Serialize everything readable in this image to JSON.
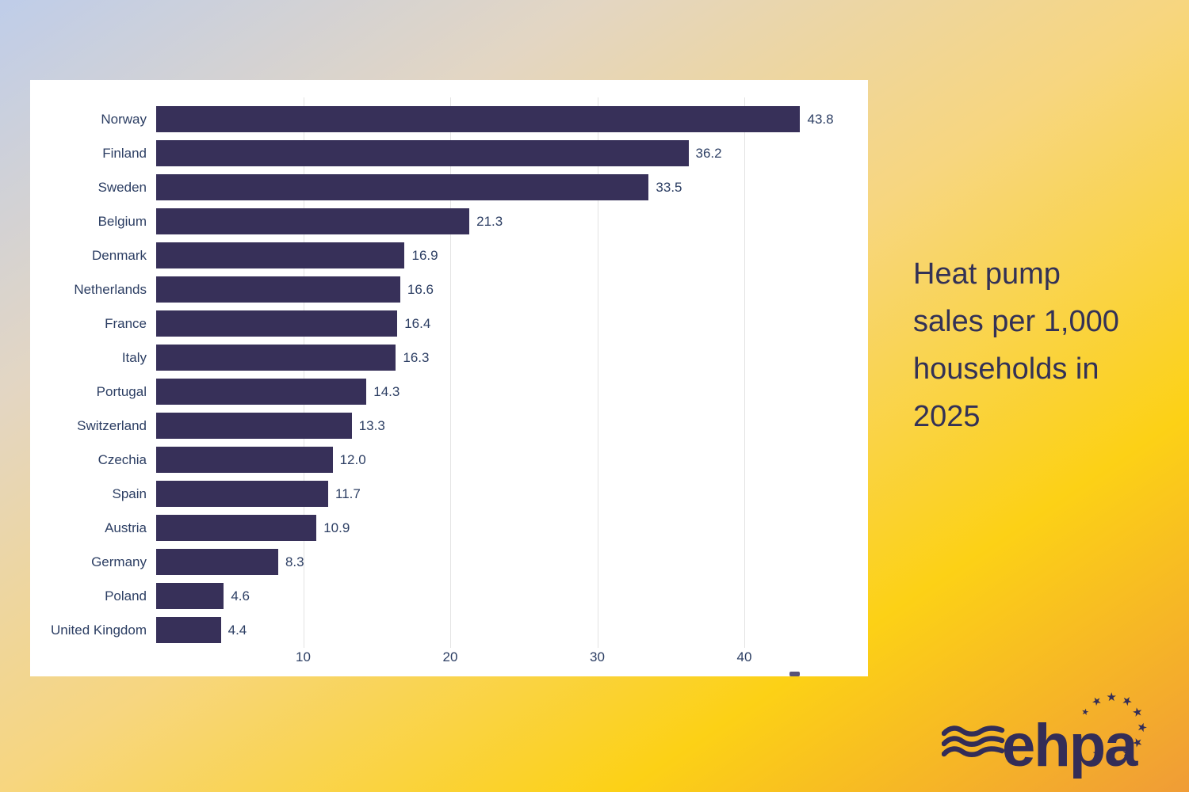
{
  "title": {
    "text": "Heat pump sales per 1,000 households in 2025",
    "lines": [
      "Heat pump",
      "sales per 1,000",
      "households in",
      "2025"
    ]
  },
  "chart_data": {
    "type": "bar",
    "orientation": "horizontal",
    "title": "Heat pump sales per 1,000 households in 2025",
    "categories": [
      "Norway",
      "Finland",
      "Sweden",
      "Belgium",
      "Denmark",
      "Netherlands",
      "France",
      "Italy",
      "Portugal",
      "Switzerland",
      "Czechia",
      "Spain",
      "Austria",
      "Germany",
      "Poland",
      "United Kingdom"
    ],
    "values": [
      43.8,
      36.2,
      33.5,
      21.3,
      16.9,
      16.6,
      16.4,
      16.3,
      14.3,
      13.3,
      12.0,
      11.7,
      10.9,
      8.3,
      4.6,
      4.4
    ],
    "value_labels": [
      "43.8",
      "36.2",
      "33.5",
      "21.3",
      "16.9",
      "16.6",
      "16.4",
      "16.3",
      "14.3",
      "13.3",
      "12.0",
      "11.7",
      "10.9",
      "8.3",
      "4.6",
      "4.4"
    ],
    "xticks": [
      10,
      20,
      30,
      40
    ],
    "xlim": [
      0,
      48
    ],
    "grid": true,
    "legend": false,
    "value_labels_shown": true,
    "bar_color": "#373059",
    "text_color": "#2c3e63",
    "gridline_color": "#e3e3e3",
    "panel_color": "#ffffff"
  },
  "logo": {
    "wordmark": "ehpa",
    "icon": "waves-icon",
    "star_glyph": "★",
    "star_count": 10,
    "color": "#332d57"
  },
  "colors": {
    "title_text": "#333156",
    "bg_top_left": "#bfcde9",
    "bg_beige": "#e3d6c3",
    "bg_soft_yellow": "#f7d67f",
    "bg_vivid_yellow": "#fcd116",
    "bg_orange": "#f09c36"
  }
}
